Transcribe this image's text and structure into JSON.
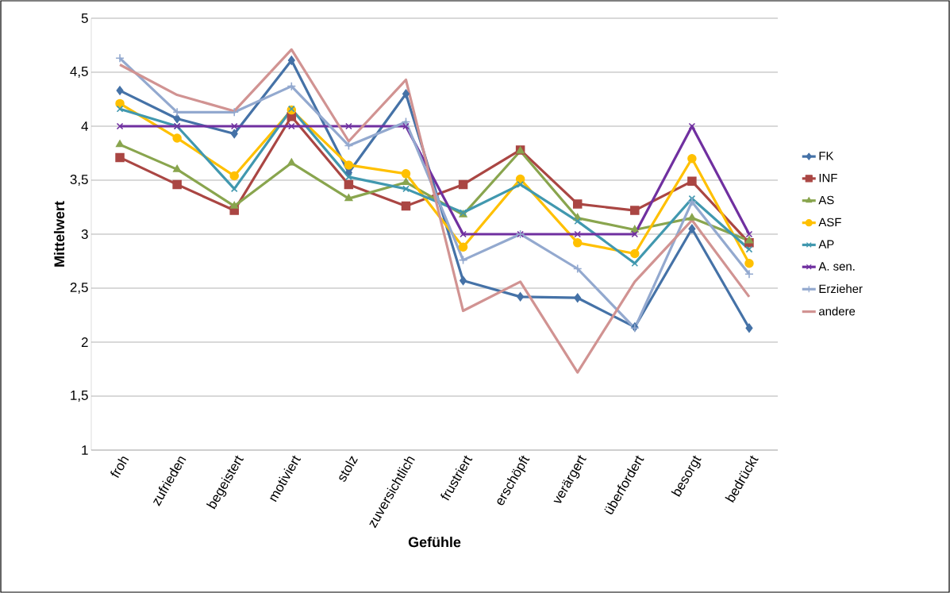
{
  "chart_data": {
    "type": "line",
    "xlabel": "Gefühle",
    "ylabel": "Mittelwert",
    "categories": [
      "froh",
      "zufrieden",
      "begeistert",
      "motiviert",
      "stolz",
      "zuversichtlich",
      "frustriert",
      "erschöpft",
      "verärgert",
      "überfordert",
      "besorgt",
      "bedrückt"
    ],
    "ylim": [
      1,
      5
    ],
    "yticks": [
      1,
      {
        "value": 1.5,
        "label": "1,5"
      },
      2,
      {
        "value": 2.5,
        "label": "2,5"
      },
      3,
      {
        "value": 3.5,
        "label": "3,5"
      },
      4,
      {
        "value": 4.5,
        "label": "4,5"
      },
      5
    ],
    "grid": "y",
    "legend": "right",
    "line_style": "solid",
    "series": [
      {
        "name": "FK",
        "color": "#4572a7",
        "marker": "diamond",
        "values": [
          4.33,
          4.07,
          3.93,
          4.61,
          3.57,
          4.3,
          2.57,
          2.42,
          2.41,
          2.14,
          3.05,
          2.13
        ]
      },
      {
        "name": "INF",
        "color": "#aa4643",
        "marker": "square",
        "values": [
          3.71,
          3.46,
          3.22,
          4.09,
          3.46,
          3.26,
          3.46,
          3.78,
          3.28,
          3.22,
          3.49,
          2.92
        ]
      },
      {
        "name": "AS",
        "color": "#89a54e",
        "marker": "triangle",
        "values": [
          3.83,
          3.6,
          3.26,
          3.66,
          3.33,
          3.48,
          3.18,
          3.77,
          3.15,
          3.04,
          3.15,
          2.94
        ]
      },
      {
        "name": "ASF",
        "color": "#ffc000",
        "marker": "circle",
        "values": [
          4.21,
          3.89,
          3.54,
          4.15,
          3.64,
          3.56,
          2.88,
          3.51,
          2.92,
          2.82,
          3.7,
          2.73
        ]
      },
      {
        "name": "AP",
        "color": "#4198af",
        "marker": "cross",
        "values": [
          4.16,
          4.0,
          3.42,
          4.16,
          3.53,
          3.42,
          3.2,
          3.46,
          3.12,
          2.73,
          3.33,
          2.86
        ]
      },
      {
        "name": "A. sen.",
        "color": "#7030a0",
        "marker": "cross",
        "values": [
          4.0,
          4.0,
          4.0,
          4.0,
          4.0,
          4.0,
          3.0,
          3.0,
          3.0,
          3.0,
          4.0,
          3.0
        ]
      },
      {
        "name": "Erzieher",
        "color": "#93a9cf",
        "marker": "plus",
        "values": [
          4.63,
          4.13,
          4.13,
          4.37,
          3.82,
          4.04,
          2.76,
          3.0,
          2.68,
          2.13,
          3.3,
          2.63
        ]
      },
      {
        "name": "andere",
        "color": "#d19392",
        "marker": "none",
        "values": [
          4.57,
          4.29,
          4.14,
          4.71,
          3.86,
          4.43,
          2.29,
          2.56,
          1.72,
          2.56,
          3.13,
          2.42
        ]
      }
    ]
  }
}
